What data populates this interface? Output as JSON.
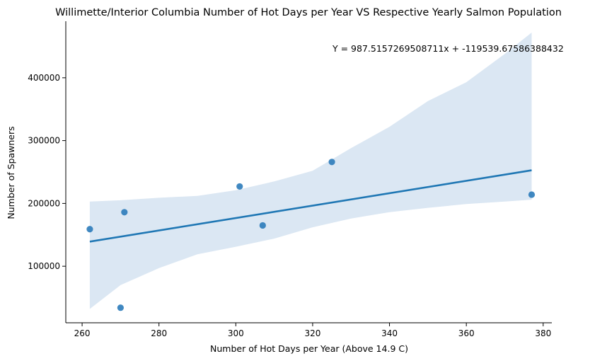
{
  "chart_data": {
    "type": "scatter",
    "title": "Willimette/Interior Columbia Number of Hot Days per Year VS Respective Yearly Salmon Population",
    "xlabel": "Number of Hot Days per Year (Above 14.9 C)",
    "ylabel": "Number of Spawners",
    "annotation": "Y = 987.5157269508711x + -119539.67586388432",
    "xlim": [
      255.75,
      382.25
    ],
    "ylim": [
      10000,
      490000
    ],
    "xticks": [
      260,
      280,
      300,
      320,
      340,
      360,
      380
    ],
    "yticks": [
      100000,
      200000,
      300000,
      400000
    ],
    "points": [
      {
        "x": 262,
        "y": 159000
      },
      {
        "x": 270,
        "y": 34000
      },
      {
        "x": 271,
        "y": 186000
      },
      {
        "x": 301,
        "y": 227000
      },
      {
        "x": 307,
        "y": 165000
      },
      {
        "x": 325,
        "y": 266000
      },
      {
        "x": 377,
        "y": 214000
      }
    ],
    "regression": {
      "slope": 987.5157269508711,
      "intercept": -119539.67586388432,
      "x_range": [
        262,
        377
      ]
    },
    "confidence_band": {
      "x": [
        262,
        270,
        280,
        290,
        300,
        310,
        320,
        330,
        340,
        350,
        360,
        370,
        377
      ],
      "lower": [
        32000,
        70000,
        97000,
        119000,
        131000,
        144000,
        162000,
        176000,
        186000,
        193000,
        199000,
        203000,
        206000
      ],
      "upper": [
        203000,
        205000,
        209000,
        212000,
        221000,
        235000,
        252000,
        288000,
        322000,
        363000,
        393000,
        438000,
        472000
      ]
    },
    "colors": {
      "points": "#2b7bba",
      "line": "#1f77b4",
      "band": "#dbe7f3"
    },
    "grid": false,
    "legend": "none"
  }
}
